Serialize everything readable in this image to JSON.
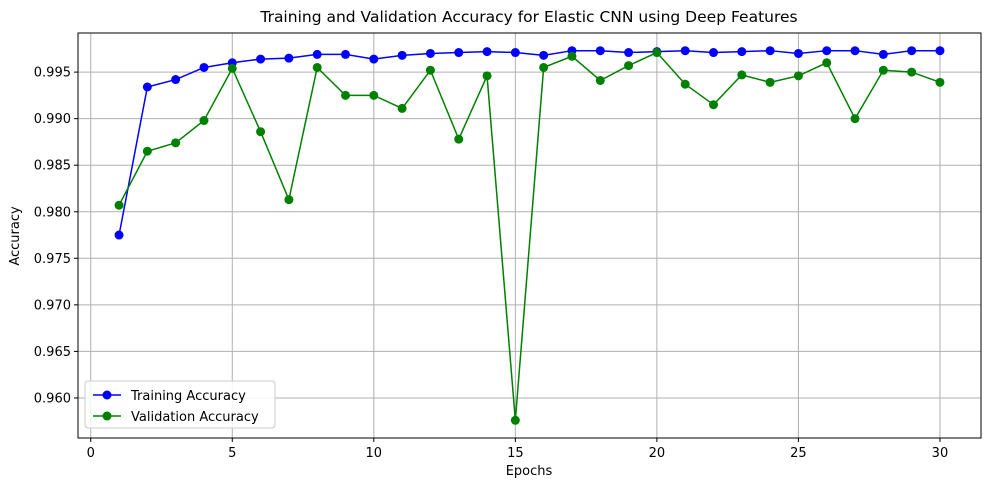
{
  "chart_data": {
    "type": "line",
    "title": "Training and Validation Accuracy for Elastic CNN using Deep Features",
    "xlabel": "Epochs",
    "ylabel": "Accuracy",
    "xlim": [
      -0.45,
      31.45
    ],
    "ylim": [
      0.9557,
      0.9992
    ],
    "xticks": [
      0,
      5,
      10,
      15,
      20,
      25,
      30
    ],
    "yticks": [
      0.96,
      0.965,
      0.97,
      0.975,
      0.98,
      0.985,
      0.99,
      0.995
    ],
    "grid": true,
    "legend_position": "lower-left",
    "x": [
      1,
      2,
      3,
      4,
      5,
      6,
      7,
      8,
      9,
      10,
      11,
      12,
      13,
      14,
      15,
      16,
      17,
      18,
      19,
      20,
      21,
      22,
      23,
      24,
      25,
      26,
      27,
      28,
      29,
      30
    ],
    "series": [
      {
        "name": "Training Accuracy",
        "color": "#0000ff",
        "marker": "circle",
        "values": [
          0.9775,
          0.9934,
          0.9942,
          0.9955,
          0.996,
          0.9964,
          0.9965,
          0.9969,
          0.9969,
          0.9964,
          0.9968,
          0.997,
          0.9971,
          0.9972,
          0.9971,
          0.9968,
          0.9973,
          0.9973,
          0.9971,
          0.9972,
          0.9973,
          0.9971,
          0.9972,
          0.9973,
          0.997,
          0.9973,
          0.9973,
          0.9969,
          0.9973,
          0.9973
        ]
      },
      {
        "name": "Validation Accuracy",
        "color": "#008000",
        "marker": "circle",
        "values": [
          0.9807,
          0.9865,
          0.9874,
          0.9898,
          0.9954,
          0.9886,
          0.9813,
          0.9955,
          0.9925,
          0.9925,
          0.9911,
          0.9952,
          0.9878,
          0.9946,
          0.9576,
          0.9955,
          0.9967,
          0.9941,
          0.9957,
          0.9971,
          0.9937,
          0.9915,
          0.9947,
          0.9939,
          0.9946,
          0.996,
          0.99,
          0.9952,
          0.995,
          0.9939
        ]
      }
    ]
  }
}
